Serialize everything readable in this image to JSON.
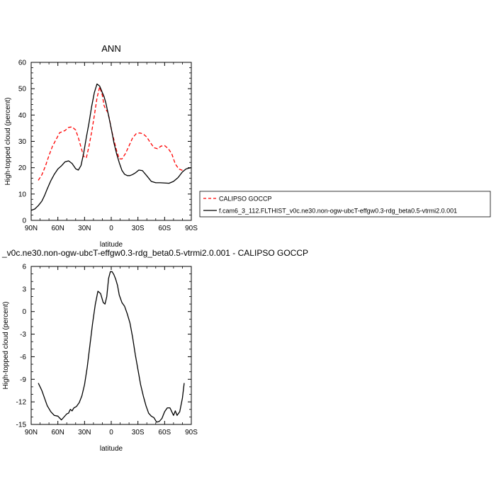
{
  "chart_data": [
    {
      "type": "line",
      "title": "ANN",
      "xlabel": "latitude",
      "ylabel": "High-topped cloud (percent)",
      "xlim": [
        -90,
        90
      ],
      "ylim": [
        0,
        60
      ],
      "xticks": [
        -90,
        -60,
        -30,
        0,
        30,
        60,
        90
      ],
      "xtick_labels": [
        "90N",
        "60N",
        "30N",
        "0",
        "30S",
        "60S",
        "90S"
      ],
      "yticks": [
        0,
        10,
        20,
        30,
        40,
        50,
        60
      ],
      "ytick_labels": [
        "0",
        "10",
        "20",
        "30",
        "40",
        "50",
        "60"
      ],
      "legend_position": "right",
      "series": [
        {
          "name": "CALIPSO GOCCP",
          "color": "#ff0000",
          "dash": "dashed",
          "x": [
            -82,
            -78,
            -74,
            -70,
            -66,
            -62,
            -58,
            -55,
            -52,
            -48,
            -44,
            -40,
            -37,
            -34,
            -31,
            -28,
            -25,
            -22,
            -19,
            -16,
            -13,
            -10,
            -8,
            -6,
            -4,
            -2,
            0,
            3,
            6,
            9,
            12,
            16,
            20,
            24,
            28,
            32,
            36,
            40,
            44,
            48,
            52,
            56,
            60,
            64,
            68,
            72,
            76,
            80,
            82
          ],
          "y": [
            15.2,
            17.3,
            20.6,
            24.6,
            28.2,
            30.7,
            33.3,
            33.7,
            34.1,
            35.3,
            35.5,
            34.3,
            31.4,
            27.8,
            24.3,
            23.7,
            28.2,
            33.6,
            39.8,
            46.5,
            50.7,
            47.5,
            43.5,
            42.1,
            41.1,
            38.5,
            34.7,
            30.6,
            26.5,
            23.4,
            23.3,
            25.4,
            28.3,
            31.3,
            32.9,
            33.2,
            32.8,
            31.6,
            29.5,
            27.6,
            27.2,
            28.2,
            28.4,
            27.3,
            25.3,
            21.4,
            19.5,
            19.0,
            18.8
          ]
        },
        {
          "name": "f.cam6_3_112.FLTHIST_v0c.ne30.non-ogw-ubcT-effgw0.3-rdg_beta0.5-vtrmi2.0.001",
          "color": "#000000",
          "dash": "solid",
          "x": [
            -90,
            -86,
            -82,
            -78,
            -75,
            -72,
            -68,
            -64,
            -60,
            -56,
            -52,
            -48,
            -44,
            -40,
            -37,
            -34,
            -31,
            -28,
            -25,
            -22,
            -19,
            -16,
            -13,
            -10,
            -8,
            -6,
            -3,
            0,
            3,
            6,
            9,
            12,
            15,
            18,
            21,
            24,
            27,
            31,
            35,
            40,
            45,
            50,
            55,
            60,
            65,
            70,
            75,
            80,
            84,
            87,
            90
          ],
          "y": [
            3.8,
            4.3,
            5.6,
            7.3,
            9.4,
            11.9,
            15.0,
            17.5,
            19.5,
            20.7,
            22.2,
            22.6,
            21.6,
            19.6,
            19.1,
            20.8,
            25.5,
            31.5,
            37.0,
            43.3,
            48.5,
            51.8,
            51.0,
            48.5,
            46.9,
            44.5,
            39.8,
            34.9,
            29.5,
            25.3,
            21.9,
            19.0,
            17.5,
            17.0,
            17.0,
            17.4,
            18.0,
            19.1,
            18.9,
            16.9,
            14.8,
            14.3,
            14.3,
            14.2,
            14.1,
            14.8,
            16.2,
            18.4,
            19.5,
            19.8,
            20.0
          ]
        }
      ]
    },
    {
      "type": "line",
      "title": "_v0c.ne30.non-ogw-ubcT-effgw0.3-rdg_beta0.5-vtrmi2.0.001 - CALIPSO GOCCP",
      "xlabel": "latitude",
      "ylabel": "High-topped cloud (percent)",
      "xlim": [
        -90,
        90
      ],
      "ylim": [
        -15,
        6
      ],
      "xticks": [
        -90,
        -60,
        -30,
        0,
        30,
        60,
        90
      ],
      "xtick_labels": [
        "90N",
        "60N",
        "30N",
        "0",
        "30S",
        "60S",
        "90S"
      ],
      "yticks": [
        -15,
        -12,
        -9,
        -6,
        -3,
        0,
        3,
        6
      ],
      "ytick_labels": [
        "-15",
        "-12",
        "-9",
        "-6",
        "-3",
        "0",
        "3",
        "6"
      ],
      "series": [
        {
          "color": "#000000",
          "dash": "solid",
          "x": [
            -82,
            -78,
            -75,
            -72,
            -68,
            -64,
            -60,
            -56,
            -53,
            -50,
            -48,
            -46,
            -44,
            -42,
            -39,
            -36,
            -33,
            -30,
            -27,
            -24,
            -21,
            -18,
            -15,
            -12,
            -9,
            -7,
            -5,
            -3,
            -1,
            1,
            3,
            5,
            7,
            9,
            12,
            15,
            18,
            21,
            24,
            27,
            30,
            33,
            36,
            39,
            42,
            45,
            48,
            51,
            54,
            57,
            60,
            63,
            66,
            68,
            70,
            72,
            74,
            77,
            80,
            82
          ],
          "y": [
            -9.5,
            -10.5,
            -11.5,
            -12.5,
            -13.3,
            -13.8,
            -13.9,
            -14.4,
            -14.0,
            -13.6,
            -13.5,
            -13.0,
            -13.2,
            -12.8,
            -12.6,
            -12.1,
            -11.2,
            -9.7,
            -7.4,
            -4.5,
            -1.6,
            0.9,
            2.7,
            2.4,
            1.2,
            1.0,
            2.0,
            4.4,
            5.3,
            5.3,
            4.9,
            4.3,
            3.5,
            2.2,
            1.2,
            0.7,
            -0.3,
            -1.5,
            -3.4,
            -5.7,
            -7.7,
            -9.7,
            -11.2,
            -12.5,
            -13.5,
            -13.9,
            -14.1,
            -14.7,
            -14.6,
            -14.2,
            -13.3,
            -12.8,
            -12.8,
            -13.3,
            -13.8,
            -13.2,
            -13.8,
            -13.3,
            -11.5,
            -9.5
          ]
        }
      ]
    }
  ]
}
